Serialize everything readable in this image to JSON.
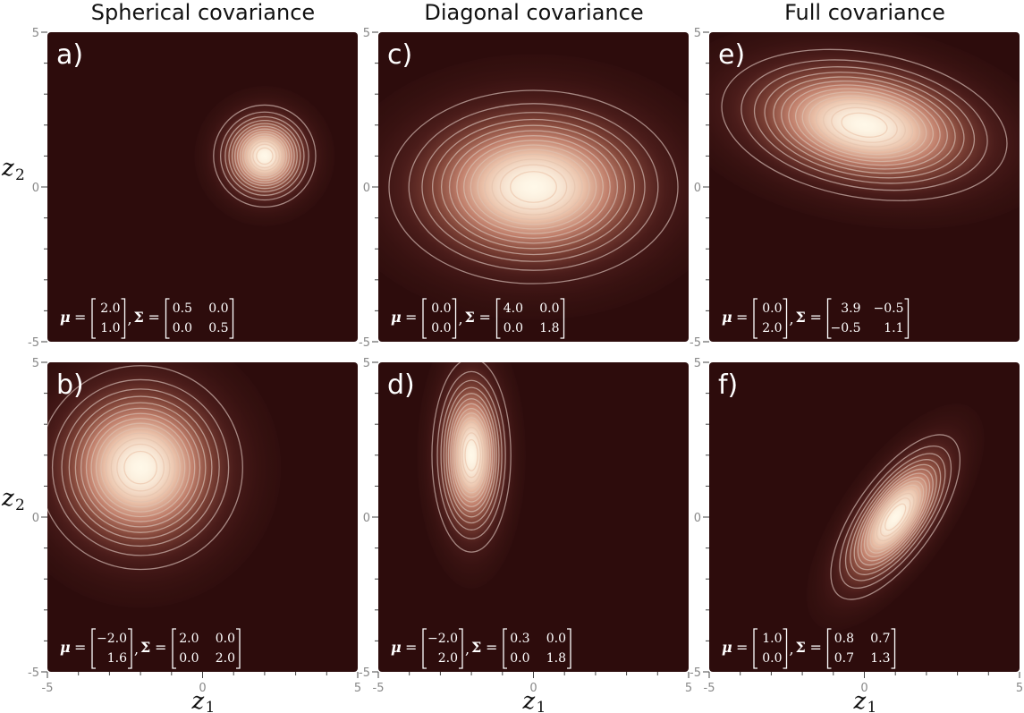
{
  "column_titles": [
    "Spherical covariance",
    "Diagonal covariance",
    "Full covariance"
  ],
  "axis": {
    "x_label_var": "z",
    "x_label_sub": "1",
    "y_label_var": "z",
    "y_label_sub": "2",
    "x_tick_labels": [
      "-5",
      "0",
      "5"
    ],
    "y_tick_labels": [
      "5",
      "0",
      "-5"
    ],
    "range": [
      -5,
      5
    ]
  },
  "colors": {
    "background": "#2d0c0c",
    "peak": "#fff8e8",
    "contour_inner": "#f3d0b6",
    "contour_outer": "#b49894"
  },
  "chart_data": [
    {
      "type": "heatmap",
      "label": "a)",
      "mu": [
        2.0,
        1.0
      ],
      "sigma": [
        [
          0.5,
          0.0
        ],
        [
          0.0,
          0.5
        ]
      ],
      "mu_text": [
        "2.0",
        "1.0"
      ],
      "sigma_text": [
        [
          "0.5",
          "0.0"
        ],
        [
          "0.0",
          "0.5"
        ]
      ]
    },
    {
      "type": "heatmap",
      "label": "b)",
      "mu": [
        -2.0,
        1.6
      ],
      "sigma": [
        [
          2.0,
          0.0
        ],
        [
          0.0,
          2.0
        ]
      ],
      "mu_text": [
        "−2.0",
        "1.6"
      ],
      "sigma_text": [
        [
          "2.0",
          "0.0"
        ],
        [
          "0.0",
          "2.0"
        ]
      ]
    },
    {
      "type": "heatmap",
      "label": "c)",
      "mu": [
        0.0,
        0.0
      ],
      "sigma": [
        [
          4.0,
          0.0
        ],
        [
          0.0,
          1.8
        ]
      ],
      "mu_text": [
        "0.0",
        "0.0"
      ],
      "sigma_text": [
        [
          "4.0",
          "0.0"
        ],
        [
          "0.0",
          "1.8"
        ]
      ]
    },
    {
      "type": "heatmap",
      "label": "d)",
      "mu": [
        -2.0,
        2.0
      ],
      "sigma": [
        [
          0.3,
          0.0
        ],
        [
          0.0,
          1.8
        ]
      ],
      "mu_text": [
        "−2.0",
        "2.0"
      ],
      "sigma_text": [
        [
          "0.3",
          "0.0"
        ],
        [
          "0.0",
          "1.8"
        ]
      ]
    },
    {
      "type": "heatmap",
      "label": "e)",
      "mu": [
        0.0,
        2.0
      ],
      "sigma": [
        [
          3.9,
          -0.5
        ],
        [
          -0.5,
          1.1
        ]
      ],
      "mu_text": [
        "0.0",
        "2.0"
      ],
      "sigma_text": [
        [
          "3.9",
          "−0.5"
        ],
        [
          "−0.5",
          "1.1"
        ]
      ]
    },
    {
      "type": "heatmap",
      "label": "f)",
      "mu": [
        1.0,
        0.0
      ],
      "sigma": [
        [
          0.8,
          0.7
        ],
        [
          0.7,
          1.3
        ]
      ],
      "mu_text": [
        "1.0",
        "0.0"
      ],
      "sigma_text": [
        [
          "0.8",
          "0.7"
        ],
        [
          "0.7",
          "1.3"
        ]
      ]
    }
  ]
}
